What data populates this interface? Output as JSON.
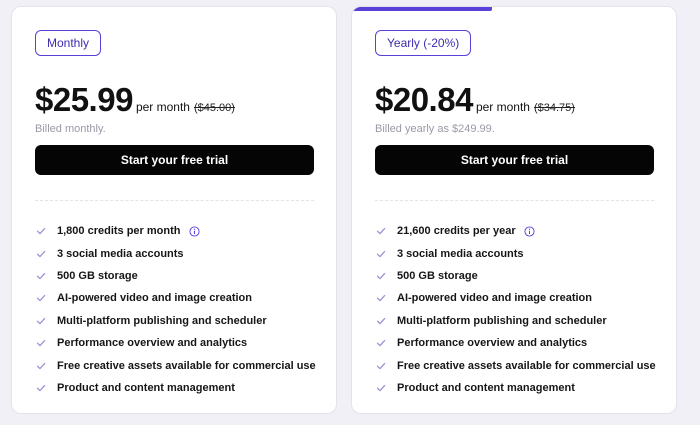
{
  "colors": {
    "accent": "#5b3fd9",
    "button_bg": "#050505",
    "button_text": "#ffffff",
    "muted_text": "#9a9aa6",
    "page_bg": "#f1f0f6",
    "check": "#9c92d6"
  },
  "icons": {
    "check": "check-icon",
    "info": "info-icon"
  },
  "plans": [
    {
      "label": "Monthly",
      "price": "$25.99",
      "period": "per month",
      "original_price": "($45.00)",
      "billed": "Billed monthly.",
      "cta": "Start your free trial",
      "features": [
        "1,800 credits per month",
        "3 social media accounts",
        "500 GB storage",
        "AI-powered video and image creation",
        "Multi-platform publishing and scheduler",
        "Performance overview and analytics",
        "Free creative assets available for commercial use",
        "Product and content management"
      ]
    },
    {
      "label": "Yearly (-20%)",
      "price": "$20.84",
      "period": "per month",
      "original_price": "($34.75)",
      "billed": "Billed yearly as $249.99.",
      "cta": "Start your free trial",
      "features": [
        "21,600 credits per year",
        "3 social media accounts",
        "500 GB storage",
        "AI-powered video and image creation",
        "Multi-platform publishing and scheduler",
        "Performance overview and analytics",
        "Free creative assets available for commercial use",
        "Product and content management"
      ]
    }
  ]
}
